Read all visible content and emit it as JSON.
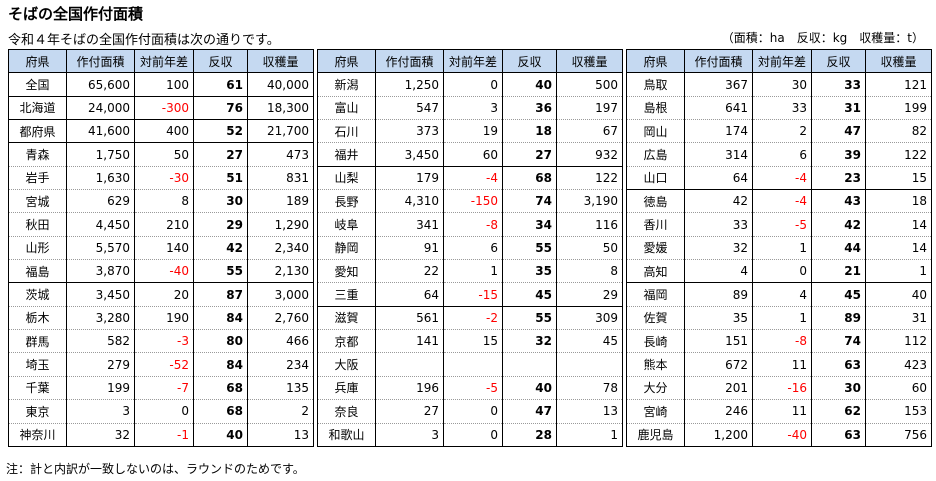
{
  "title": "そばの全国作付面積",
  "subtitle": "令和４年そばの全国作付面積は次の通りです。",
  "units": "（面積：ha　反収：kg　収穫量：t）",
  "note": "注：計と内訳が一致しないのは、ラウンドのためです。",
  "headers": [
    "府県",
    "作付面積",
    "対前年差",
    "反収",
    "収穫量"
  ],
  "blocks": [
    {
      "rows": [
        [
          "全国",
          "65,600",
          "100",
          "61",
          "40,000"
        ],
        [
          "北海道",
          "24,000",
          "-300",
          "76",
          "18,300"
        ],
        [
          "都府県",
          "41,600",
          "400",
          "52",
          "21,700"
        ],
        [
          "青森",
          "1,750",
          "50",
          "27",
          "473"
        ],
        [
          "岩手",
          "1,630",
          "-30",
          "51",
          "831"
        ],
        [
          "宮城",
          "629",
          "8",
          "30",
          "189"
        ],
        [
          "秋田",
          "4,450",
          "210",
          "29",
          "1,290"
        ],
        [
          "山形",
          "5,570",
          "140",
          "42",
          "2,340"
        ],
        [
          "福島",
          "3,870",
          "-40",
          "55",
          "2,130"
        ],
        [
          "茨城",
          "3,450",
          "20",
          "87",
          "3,000"
        ],
        [
          "栃木",
          "3,280",
          "190",
          "84",
          "2,760"
        ],
        [
          "群馬",
          "582",
          "-3",
          "80",
          "466"
        ],
        [
          "埼玉",
          "279",
          "-52",
          "84",
          "234"
        ],
        [
          "千葉",
          "199",
          "-7",
          "68",
          "135"
        ],
        [
          "東京",
          "3",
          "0",
          "68",
          "2"
        ],
        [
          "神奈川",
          "32",
          "-1",
          "40",
          "13"
        ]
      ]
    },
    {
      "rows": [
        [
          "新潟",
          "1,250",
          "0",
          "40",
          "500"
        ],
        [
          "富山",
          "547",
          "3",
          "36",
          "197"
        ],
        [
          "石川",
          "373",
          "19",
          "18",
          "67"
        ],
        [
          "福井",
          "3,450",
          "60",
          "27",
          "932"
        ],
        [
          "山梨",
          "179",
          "-4",
          "68",
          "122"
        ],
        [
          "長野",
          "4,310",
          "-150",
          "74",
          "3,190"
        ],
        [
          "岐阜",
          "341",
          "-8",
          "34",
          "116"
        ],
        [
          "静岡",
          "91",
          "6",
          "55",
          "50"
        ],
        [
          "愛知",
          "22",
          "1",
          "35",
          "8"
        ],
        [
          "三重",
          "64",
          "-15",
          "45",
          "29"
        ],
        [
          "滋賀",
          "561",
          "-2",
          "55",
          "309"
        ],
        [
          "京都",
          "141",
          "15",
          "32",
          "45"
        ],
        [
          "大阪",
          "",
          "",
          "",
          ""
        ],
        [
          "兵庫",
          "196",
          "-5",
          "40",
          "78"
        ],
        [
          "奈良",
          "27",
          "0",
          "47",
          "13"
        ],
        [
          "和歌山",
          "3",
          "0",
          "28",
          "1"
        ]
      ]
    },
    {
      "rows": [
        [
          "鳥取",
          "367",
          "30",
          "33",
          "121"
        ],
        [
          "島根",
          "641",
          "33",
          "31",
          "199"
        ],
        [
          "岡山",
          "174",
          "2",
          "47",
          "82"
        ],
        [
          "広島",
          "314",
          "6",
          "39",
          "122"
        ],
        [
          "山口",
          "64",
          "-4",
          "23",
          "15"
        ],
        [
          "徳島",
          "42",
          "-4",
          "43",
          "18"
        ],
        [
          "香川",
          "33",
          "-5",
          "42",
          "14"
        ],
        [
          "愛媛",
          "32",
          "1",
          "44",
          "14"
        ],
        [
          "高知",
          "4",
          "0",
          "21",
          "1"
        ],
        [
          "福岡",
          "89",
          "4",
          "45",
          "40"
        ],
        [
          "佐賀",
          "35",
          "1",
          "89",
          "31"
        ],
        [
          "長崎",
          "151",
          "-8",
          "74",
          "112"
        ],
        [
          "熊本",
          "672",
          "11",
          "63",
          "423"
        ],
        [
          "大分",
          "201",
          "-16",
          "30",
          "60"
        ],
        [
          "宮崎",
          "246",
          "11",
          "62",
          "153"
        ],
        [
          "鹿児島",
          "1,200",
          "-40",
          "63",
          "756"
        ]
      ]
    }
  ]
}
